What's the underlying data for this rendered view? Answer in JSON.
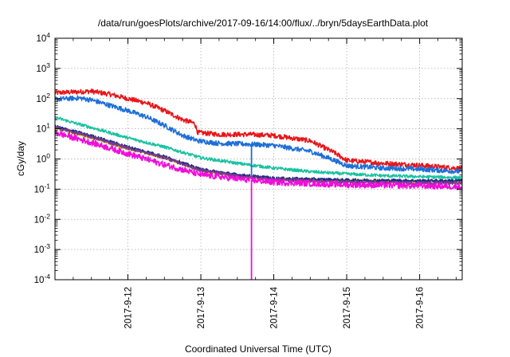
{
  "chart_data": {
    "type": "line",
    "title": "/data/run/goesPlots/archive/2017-09-16/14:00/flux/../bryn/5daysEarthData.plot",
    "xlabel": "Coordinated Universal Time (UTC)",
    "ylabel": "cGy/day",
    "y_scale": "log",
    "ylim": [
      0.0001,
      10000
    ],
    "y_ticks": [
      {
        "value": 0.0001,
        "base": "10",
        "exp": "-4"
      },
      {
        "value": 0.001,
        "base": "10",
        "exp": "-3"
      },
      {
        "value": 0.01,
        "base": "10",
        "exp": "-2"
      },
      {
        "value": 0.1,
        "base": "10",
        "exp": "-1"
      },
      {
        "value": 1,
        "base": "10",
        "exp": "0"
      },
      {
        "value": 10,
        "base": "10",
        "exp": "1"
      },
      {
        "value": 100,
        "base": "10",
        "exp": "2"
      },
      {
        "value": 1000,
        "base": "10",
        "exp": "3"
      },
      {
        "value": 10000,
        "base": "10",
        "exp": "4"
      }
    ],
    "xlim": [
      "2017-09-11T00:00",
      "2017-09-16T14:00"
    ],
    "x_ticks": [
      {
        "value": "2017-09-12T00:00",
        "label": "2017-9-12"
      },
      {
        "value": "2017-09-13T00:00",
        "label": "2017-9-13"
      },
      {
        "value": "2017-09-14T00:00",
        "label": "2017-9-14"
      },
      {
        "value": "2017-09-15T00:00",
        "label": "2017-9-15"
      },
      {
        "value": "2017-09-16T00:00",
        "label": "2017-9-16"
      }
    ],
    "grid": true,
    "legend": "none",
    "series": [
      {
        "color": "#e8161a",
        "noise": 0.08,
        "points": [
          [
            "2017-09-11T00:00",
            155
          ],
          [
            "2017-09-11T06:00",
            165
          ],
          [
            "2017-09-11T12:00",
            175
          ],
          [
            "2017-09-11T18:00",
            140
          ],
          [
            "2017-09-12T00:00",
            100
          ],
          [
            "2017-09-12T06:00",
            72
          ],
          [
            "2017-09-12T12:00",
            40
          ],
          [
            "2017-09-12T18:00",
            20
          ],
          [
            "2017-09-12T22:00",
            15
          ],
          [
            "2017-09-12T23:00",
            7.5
          ],
          [
            "2017-09-13T06:00",
            6.5
          ],
          [
            "2017-09-13T16:00",
            6.5
          ],
          [
            "2017-09-14T00:00",
            6
          ],
          [
            "2017-09-14T12:00",
            4
          ],
          [
            "2017-09-14T20:00",
            1.6
          ],
          [
            "2017-09-15T00:00",
            0.9
          ],
          [
            "2017-09-15T12:00",
            0.72
          ],
          [
            "2017-09-16T00:00",
            0.62
          ],
          [
            "2017-09-16T14:00",
            0.48
          ]
        ]
      },
      {
        "color": "#1d6fd8",
        "noise": 0.08,
        "points": [
          [
            "2017-09-11T00:00",
            95
          ],
          [
            "2017-09-11T08:00",
            105
          ],
          [
            "2017-09-11T12:00",
            90
          ],
          [
            "2017-09-11T18:00",
            60
          ],
          [
            "2017-09-12T00:00",
            40
          ],
          [
            "2017-09-12T06:00",
            25
          ],
          [
            "2017-09-12T12:00",
            13
          ],
          [
            "2017-09-12T18:00",
            6
          ],
          [
            "2017-09-12T23:00",
            4
          ],
          [
            "2017-09-13T06:00",
            3.3
          ],
          [
            "2017-09-13T16:00",
            3.1
          ],
          [
            "2017-09-14T00:00",
            2.8
          ],
          [
            "2017-09-14T12:00",
            1.8
          ],
          [
            "2017-09-14T20:00",
            0.9
          ],
          [
            "2017-09-15T00:00",
            0.6
          ],
          [
            "2017-09-15T12:00",
            0.5
          ],
          [
            "2017-09-16T00:00",
            0.46
          ],
          [
            "2017-09-16T14:00",
            0.38
          ]
        ]
      },
      {
        "color": "#19c2a0",
        "noise": 0.05,
        "points": [
          [
            "2017-09-11T00:00",
            24
          ],
          [
            "2017-09-11T06:00",
            16
          ],
          [
            "2017-09-11T12:00",
            11
          ],
          [
            "2017-09-12T00:00",
            5
          ],
          [
            "2017-09-12T12:00",
            2.5
          ],
          [
            "2017-09-13T00:00",
            1.1
          ],
          [
            "2017-09-13T12:00",
            0.72
          ],
          [
            "2017-09-14T00:00",
            0.5
          ],
          [
            "2017-09-14T12:00",
            0.38
          ],
          [
            "2017-09-15T00:00",
            0.32
          ],
          [
            "2017-09-15T12:00",
            0.28
          ],
          [
            "2017-09-16T00:00",
            0.26
          ],
          [
            "2017-09-16T14:00",
            0.24
          ]
        ]
      },
      {
        "color": "#e6d31e",
        "noise": 0.05,
        "points": [
          [
            "2017-09-11T00:00",
            10.5
          ],
          [
            "2017-09-11T12:00",
            5
          ],
          [
            "2017-09-12T00:00",
            2.2
          ],
          [
            "2017-09-12T12:00",
            1.1
          ],
          [
            "2017-09-13T00:00",
            0.42
          ],
          [
            "2017-09-13T12:00",
            0.28
          ],
          [
            "2017-09-14T00:00",
            0.22
          ],
          [
            "2017-09-15T00:00",
            0.19
          ],
          [
            "2017-09-16T00:00",
            0.18
          ],
          [
            "2017-09-16T14:00",
            0.18
          ]
        ]
      },
      {
        "color": "#1e2a8c",
        "noise": 0.05,
        "points": [
          [
            "2017-09-11T00:00",
            12
          ],
          [
            "2017-09-11T12:00",
            5.8
          ],
          [
            "2017-09-12T00:00",
            2.5
          ],
          [
            "2017-09-12T12:00",
            1.2
          ],
          [
            "2017-09-13T00:00",
            0.45
          ],
          [
            "2017-09-13T12:00",
            0.3
          ],
          [
            "2017-09-14T00:00",
            0.23
          ],
          [
            "2017-09-15T00:00",
            0.2
          ],
          [
            "2017-09-16T00:00",
            0.19
          ],
          [
            "2017-09-16T14:00",
            0.19
          ]
        ]
      },
      {
        "color": "#7a3a8a",
        "noise": 0.05,
        "points": [
          [
            "2017-09-11T00:00",
            11
          ],
          [
            "2017-09-11T12:00",
            5.3
          ],
          [
            "2017-09-12T00:00",
            2.3
          ],
          [
            "2017-09-12T12:00",
            1.1
          ],
          [
            "2017-09-13T00:00",
            0.42
          ],
          [
            "2017-09-13T12:00",
            0.27
          ],
          [
            "2017-09-14T00:00",
            0.21
          ],
          [
            "2017-09-15T00:00",
            0.17
          ],
          [
            "2017-09-16T00:00",
            0.16
          ],
          [
            "2017-09-16T14:00",
            0.16
          ]
        ]
      },
      {
        "color": "#f20ddb",
        "noise": 0.1,
        "points": [
          [
            "2017-09-11T00:00",
            7.5
          ],
          [
            "2017-09-11T12:00",
            3.5
          ],
          [
            "2017-09-12T00:00",
            1.5
          ],
          [
            "2017-09-12T12:00",
            0.65
          ],
          [
            "2017-09-13T00:00",
            0.3
          ],
          [
            "2017-09-13T12:00",
            0.22
          ],
          [
            "2017-09-14T00:00",
            0.17
          ],
          [
            "2017-09-15T00:00",
            0.14
          ],
          [
            "2017-09-16T00:00",
            0.13
          ],
          [
            "2017-09-16T14:00",
            0.12
          ]
        ]
      }
    ],
    "dropouts": [
      {
        "x": "2017-09-13T16:40",
        "to": 0.0001,
        "color": "#f20ddb"
      },
      {
        "x": "2017-09-13T16:40",
        "to": 0.25,
        "color": "#1d6fd8"
      }
    ]
  }
}
